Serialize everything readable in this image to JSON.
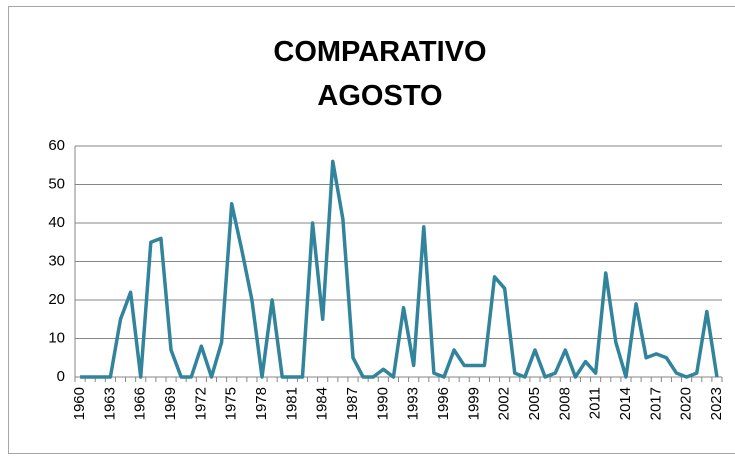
{
  "chart_data": {
    "type": "line",
    "title": "COMPARATIVO AGOSTO",
    "categories": [
      "1960",
      null,
      null,
      "1963",
      null,
      null,
      "1966",
      null,
      null,
      "1969",
      null,
      null,
      "1972",
      null,
      null,
      "1975",
      null,
      null,
      "1978",
      null,
      null,
      "1981",
      null,
      null,
      "1984",
      null,
      null,
      "1987",
      null,
      null,
      "1990",
      null,
      null,
      "1993",
      null,
      null,
      "1996",
      null,
      null,
      "1999",
      null,
      null,
      "2002",
      null,
      null,
      "2005",
      null,
      null,
      "2008",
      null,
      null,
      "2011",
      null,
      null,
      "2014",
      null,
      null,
      "2017",
      null,
      null,
      "2020",
      null,
      null,
      "2023"
    ],
    "series": [
      {
        "name": null,
        "color": "#31849b",
        "values": [
          0,
          0,
          0,
          0,
          15,
          22,
          0,
          35,
          36,
          7,
          0,
          0,
          8,
          0,
          9,
          45,
          33,
          20,
          0,
          20,
          0,
          0,
          0,
          40,
          15,
          56,
          41,
          5,
          0,
          0,
          2,
          0,
          18,
          3,
          39,
          1,
          0,
          7,
          3,
          3,
          3,
          26,
          23,
          1,
          0,
          7,
          0,
          1,
          7,
          0,
          4,
          1,
          27,
          9,
          0,
          19,
          5,
          6,
          5,
          1,
          0,
          1,
          17,
          0
        ]
      }
    ],
    "ylim": [
      0,
      60
    ],
    "yticks": [
      0,
      10,
      20,
      30,
      40,
      50,
      60
    ],
    "grid": true
  }
}
